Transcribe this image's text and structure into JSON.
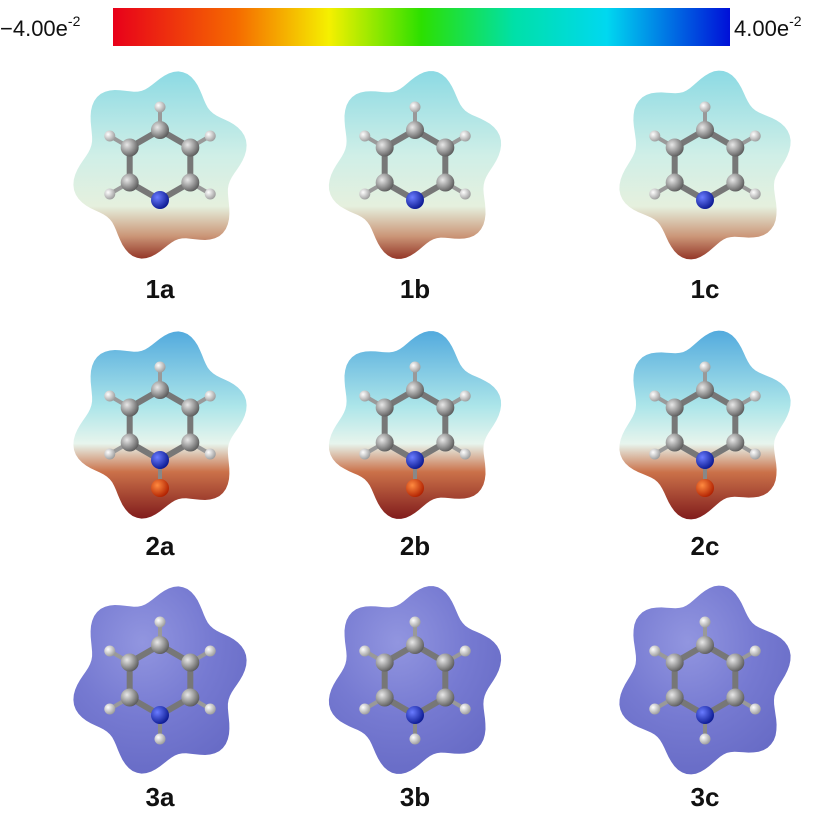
{
  "colorbar": {
    "min_label": {
      "mantissa": "−4.00e",
      "exponent": "-2"
    },
    "max_label": {
      "mantissa": "4.00e",
      "exponent": "-2"
    }
  },
  "panels": [
    {
      "label": "1a"
    },
    {
      "label": "1b"
    },
    {
      "label": "1c"
    },
    {
      "label": "2a"
    },
    {
      "label": "2b"
    },
    {
      "label": "2c"
    },
    {
      "label": "3a"
    },
    {
      "label": "3b"
    },
    {
      "label": "3c"
    }
  ]
}
